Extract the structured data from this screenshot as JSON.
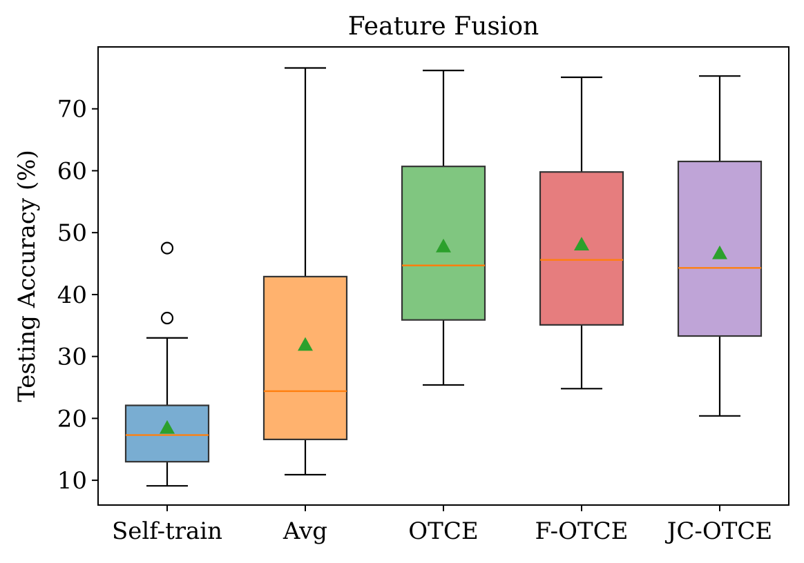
{
  "chart_data": {
    "type": "box",
    "title": "Feature Fusion",
    "xlabel": "",
    "ylabel": "Testing Accuracy (%)",
    "ylim": [
      6,
      80
    ],
    "yticks": [
      10,
      20,
      30,
      40,
      50,
      60,
      70
    ],
    "grid": false,
    "series": [
      {
        "name": "Self-train",
        "color": "#1f77b4",
        "whisker_low": 9.1,
        "q1": 13.0,
        "median": 17.3,
        "q3": 22.1,
        "whisker_high": 33.0,
        "mean": 18.5,
        "outliers": [
          36.2,
          47.5
        ]
      },
      {
        "name": "Avg",
        "color": "#ff7f0e",
        "whisker_low": 10.9,
        "q1": 16.6,
        "median": 24.4,
        "q3": 42.9,
        "whisker_high": 76.6,
        "mean": 31.9,
        "outliers": []
      },
      {
        "name": "OTCE",
        "color": "#2ca02c",
        "whisker_low": 25.4,
        "q1": 35.9,
        "median": 44.7,
        "q3": 60.7,
        "whisker_high": 76.2,
        "mean": 47.8,
        "outliers": []
      },
      {
        "name": "F-OTCE",
        "color": "#d62728",
        "whisker_low": 24.8,
        "q1": 35.1,
        "median": 45.6,
        "q3": 59.8,
        "whisker_high": 75.1,
        "mean": 48.1,
        "outliers": []
      },
      {
        "name": "JC-OTCE",
        "color": "#9467bd",
        "whisker_low": 20.4,
        "q1": 33.3,
        "median": 44.3,
        "q3": 61.5,
        "whisker_high": 75.3,
        "mean": 46.7,
        "outliers": []
      }
    ],
    "median_color": "#ff7f0e",
    "mean_marker_color": "#2ca02c"
  }
}
